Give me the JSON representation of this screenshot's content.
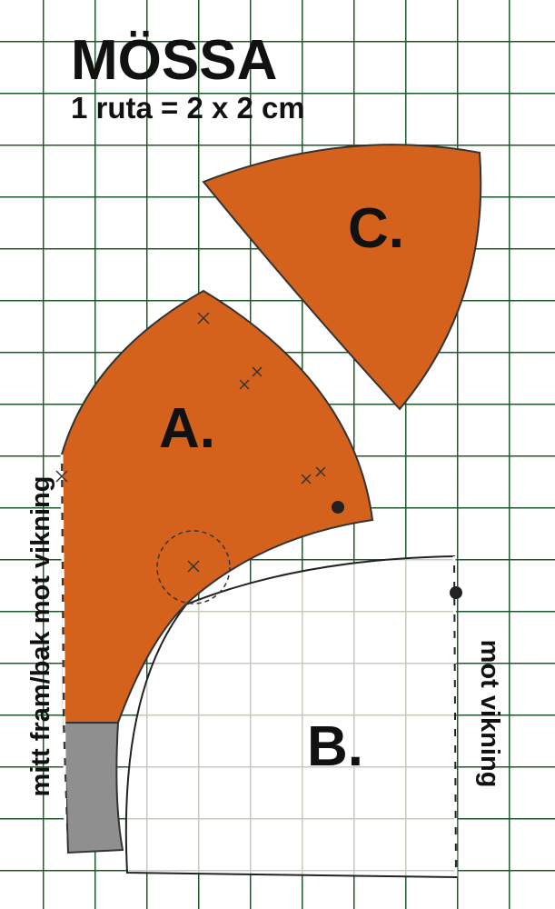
{
  "header": {
    "title": "MÖSSA",
    "subtitle": "1 ruta = 2 x 2 cm"
  },
  "pieces": [
    {
      "label": "A."
    },
    {
      "label": "B."
    },
    {
      "label": "C."
    }
  ],
  "fold_labels": {
    "left": "mitt fram/bak mot vikning",
    "right": "mot vikning"
  }
}
